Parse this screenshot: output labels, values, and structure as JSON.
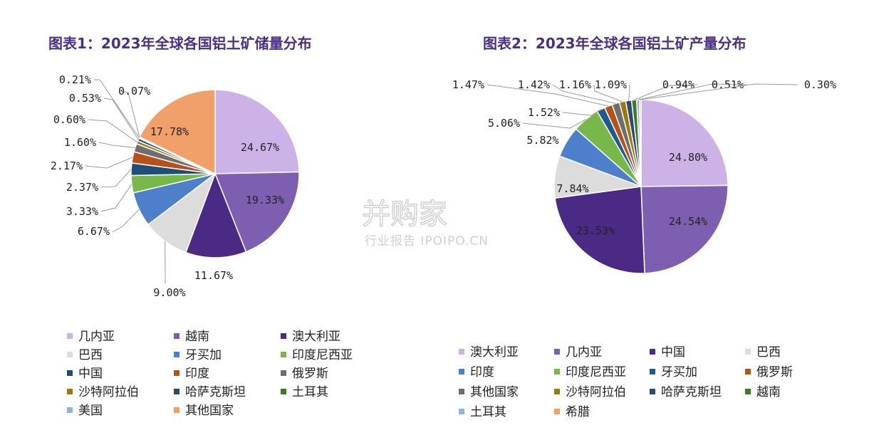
{
  "watermark": {
    "brand": "并购家",
    "subtitle": "行业报告 IPOIPO.CN"
  },
  "chart_data": [
    {
      "type": "pie",
      "title": "图表1：2023年全球各国铝土矿储量分布",
      "slices": [
        {
          "name": "几内亚",
          "value": 24.67,
          "label": "24.67%",
          "color": "#cdb2e8"
        },
        {
          "name": "越南",
          "value": 19.33,
          "label": "19.33%",
          "color": "#7e5eb0"
        },
        {
          "name": "澳大利亚",
          "value": 11.67,
          "label": "11.67%",
          "color": "#4b2a86"
        },
        {
          "name": "巴西",
          "value": 9.0,
          "label": "9.00%",
          "color": "#dcdcdc"
        },
        {
          "name": "牙买加",
          "value": 6.67,
          "label": "6.67%",
          "color": "#4e7fcb"
        },
        {
          "name": "印度尼西亚",
          "value": 3.33,
          "label": "3.33%",
          "color": "#78b84a"
        },
        {
          "name": "中国",
          "value": 2.37,
          "label": "2.37%",
          "color": "#1f4e79"
        },
        {
          "name": "印度",
          "value": 2.17,
          "label": "2.17%",
          "color": "#b5511a"
        },
        {
          "name": "俄罗斯",
          "value": 1.6,
          "label": "1.60%",
          "color": "#6e6e6e"
        },
        {
          "name": "沙特阿拉伯",
          "value": 0.6,
          "label": "0.60%",
          "color": "#9a7a10"
        },
        {
          "name": "哈萨克斯坦",
          "value": 0.53,
          "label": "0.53%",
          "color": "#2e4a6e"
        },
        {
          "name": "土耳其",
          "value": 0.21,
          "label": "0.21%",
          "color": "#3f7a2a"
        },
        {
          "name": "美国",
          "value": 0.07,
          "label": "0.07%",
          "color": "#8fb3e0"
        },
        {
          "name": "其他国家",
          "value": 17.78,
          "label": "17.78%",
          "color": "#f2a06a"
        }
      ],
      "legend": [
        "几内亚",
        "越南",
        "澳大利亚",
        "巴西",
        "牙买加",
        "印度尼西亚",
        "中国",
        "印度",
        "俄罗斯",
        "沙特阿拉伯",
        "哈萨克斯坦",
        "土耳其",
        "美国",
        "其他国家"
      ],
      "legend_placement": "bottom"
    },
    {
      "type": "pie",
      "title": "图表2：2023年全球各国铝土矿产量分布",
      "slices": [
        {
          "name": "澳大利亚",
          "value": 24.8,
          "label": "24.80%",
          "color": "#cdb2e8"
        },
        {
          "name": "几内亚",
          "value": 24.54,
          "label": "24.54%",
          "color": "#7e5eb0"
        },
        {
          "name": "中国",
          "value": 23.53,
          "label": "23.53%",
          "color": "#4b2a86"
        },
        {
          "name": "巴西",
          "value": 7.84,
          "label": "7.84%",
          "color": "#dcdcdc"
        },
        {
          "name": "印度",
          "value": 5.82,
          "label": "5.82%",
          "color": "#4e7fcb"
        },
        {
          "name": "印度尼西亚",
          "value": 5.06,
          "label": "5.06%",
          "color": "#78b84a"
        },
        {
          "name": "牙买加",
          "value": 1.52,
          "label": "1.52%",
          "color": "#1f5a8a"
        },
        {
          "name": "俄罗斯",
          "value": 1.47,
          "label": "1.47%",
          "color": "#b5511a"
        },
        {
          "name": "其他国家",
          "value": 1.42,
          "label": "1.42%",
          "color": "#6e6e6e"
        },
        {
          "name": "沙特阿拉伯",
          "value": 1.16,
          "label": "1.16%",
          "color": "#9a7a10"
        },
        {
          "name": "哈萨克斯坦",
          "value": 1.09,
          "label": "1.09%",
          "color": "#2e4a6e"
        },
        {
          "name": "越南",
          "value": 0.94,
          "label": "0.94%",
          "color": "#3f7a2a"
        },
        {
          "name": "土耳其",
          "value": 0.51,
          "label": "0.51%",
          "color": "#8fb3e0"
        },
        {
          "name": "希腊",
          "value": 0.3,
          "label": "0.30%",
          "color": "#f2a06a"
        }
      ],
      "legend": [
        "澳大利亚",
        "几内亚",
        "中国",
        "巴西",
        "印度",
        "印度尼西亚",
        "牙买加",
        "俄罗斯",
        "其他国家",
        "沙特阿拉伯",
        "哈萨克斯坦",
        "越南",
        "土耳其",
        "希腊"
      ],
      "legend_placement": "bottom"
    }
  ]
}
